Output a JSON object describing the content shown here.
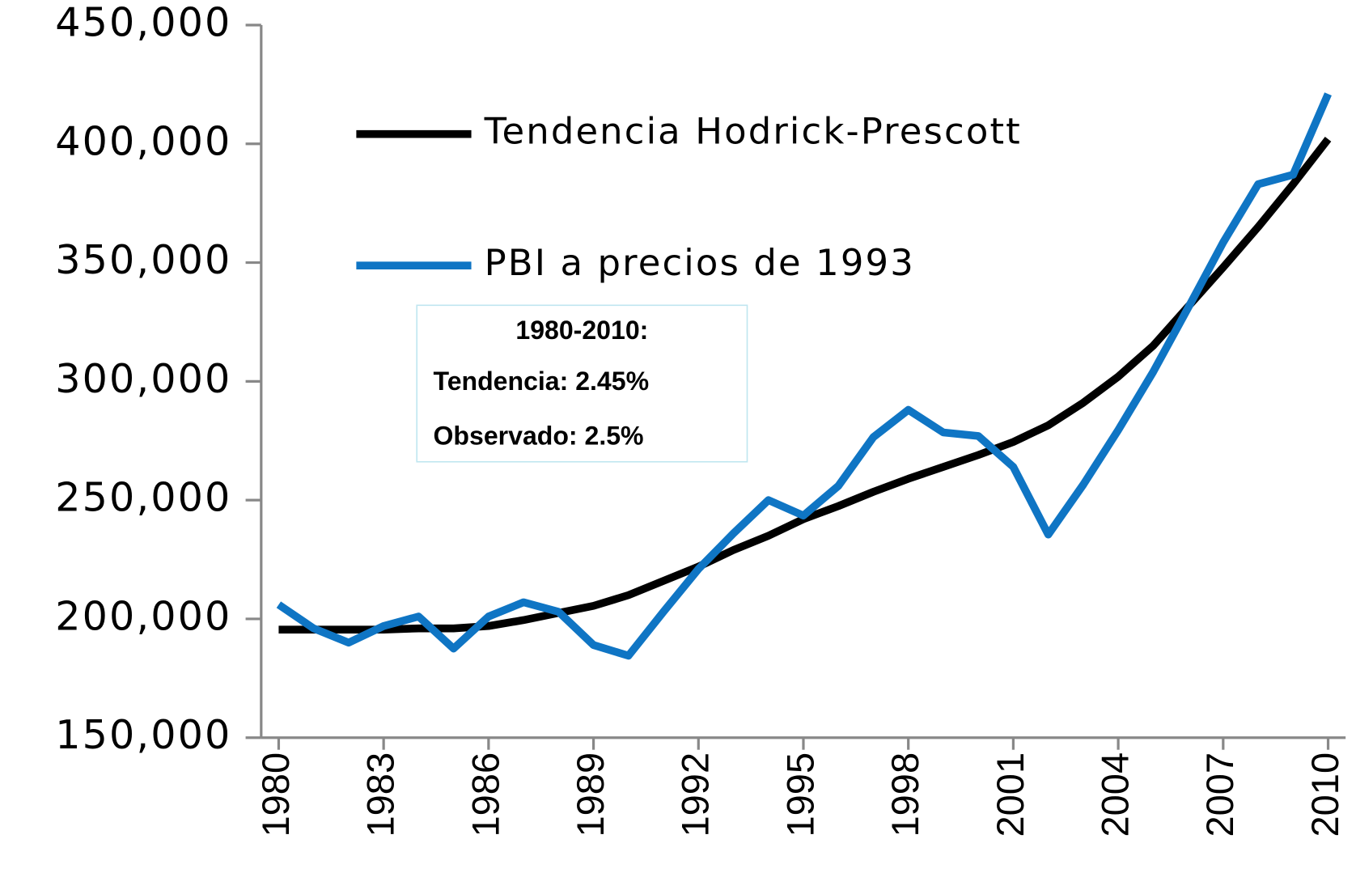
{
  "chart_data": {
    "type": "line",
    "x": [
      1980,
      1981,
      1982,
      1983,
      1984,
      1985,
      1986,
      1987,
      1988,
      1989,
      1990,
      1991,
      1992,
      1993,
      1994,
      1995,
      1996,
      1997,
      1998,
      1999,
      2000,
      2001,
      2002,
      2003,
      2004,
      2005,
      2006,
      2007,
      2008,
      2009,
      2010
    ],
    "series": [
      {
        "name": "Tendencia Hodrick-Prescott",
        "color": "#000000",
        "values": [
          195500,
          195500,
          195500,
          195500,
          196000,
          196000,
          197000,
          199500,
          202500,
          205500,
          210000,
          216000,
          222000,
          229000,
          235000,
          242000,
          247500,
          253500,
          259000,
          264000,
          269000,
          274500,
          281500,
          291000,
          302000,
          315000,
          331500,
          348000,
          365000,
          383000,
          402000
        ]
      },
      {
        "name": "PBI a precios de 1993",
        "color": "#0f75c4",
        "values": [
          206000,
          196000,
          190000,
          197000,
          201000,
          187500,
          201000,
          207000,
          203000,
          189000,
          184500,
          203000,
          221000,
          236000,
          250000,
          243500,
          256000,
          276500,
          288000,
          278500,
          277000,
          264000,
          235500,
          256500,
          279500,
          304000,
          331000,
          358500,
          383000,
          387000,
          421000
        ]
      }
    ],
    "xlim": [
      1979.5,
      2010.5
    ],
    "xticks": [
      1980,
      1983,
      1986,
      1989,
      1992,
      1995,
      1998,
      2001,
      2004,
      2007,
      2010
    ],
    "ylim": [
      150000,
      450000
    ],
    "yticks": [
      {
        "value": 150000,
        "label": "150,000"
      },
      {
        "value": 200000,
        "label": "200,000"
      },
      {
        "value": 250000,
        "label": "250,000"
      },
      {
        "value": 300000,
        "label": "300,000"
      },
      {
        "value": 350000,
        "label": "350,000"
      },
      {
        "value": 400000,
        "label": "400,000"
      },
      {
        "value": 450000,
        "label": "450,000"
      }
    ],
    "annotations": [
      "1980-2010:",
      "Tendencia: 2.45%",
      "Observado: 2.5%"
    ]
  }
}
